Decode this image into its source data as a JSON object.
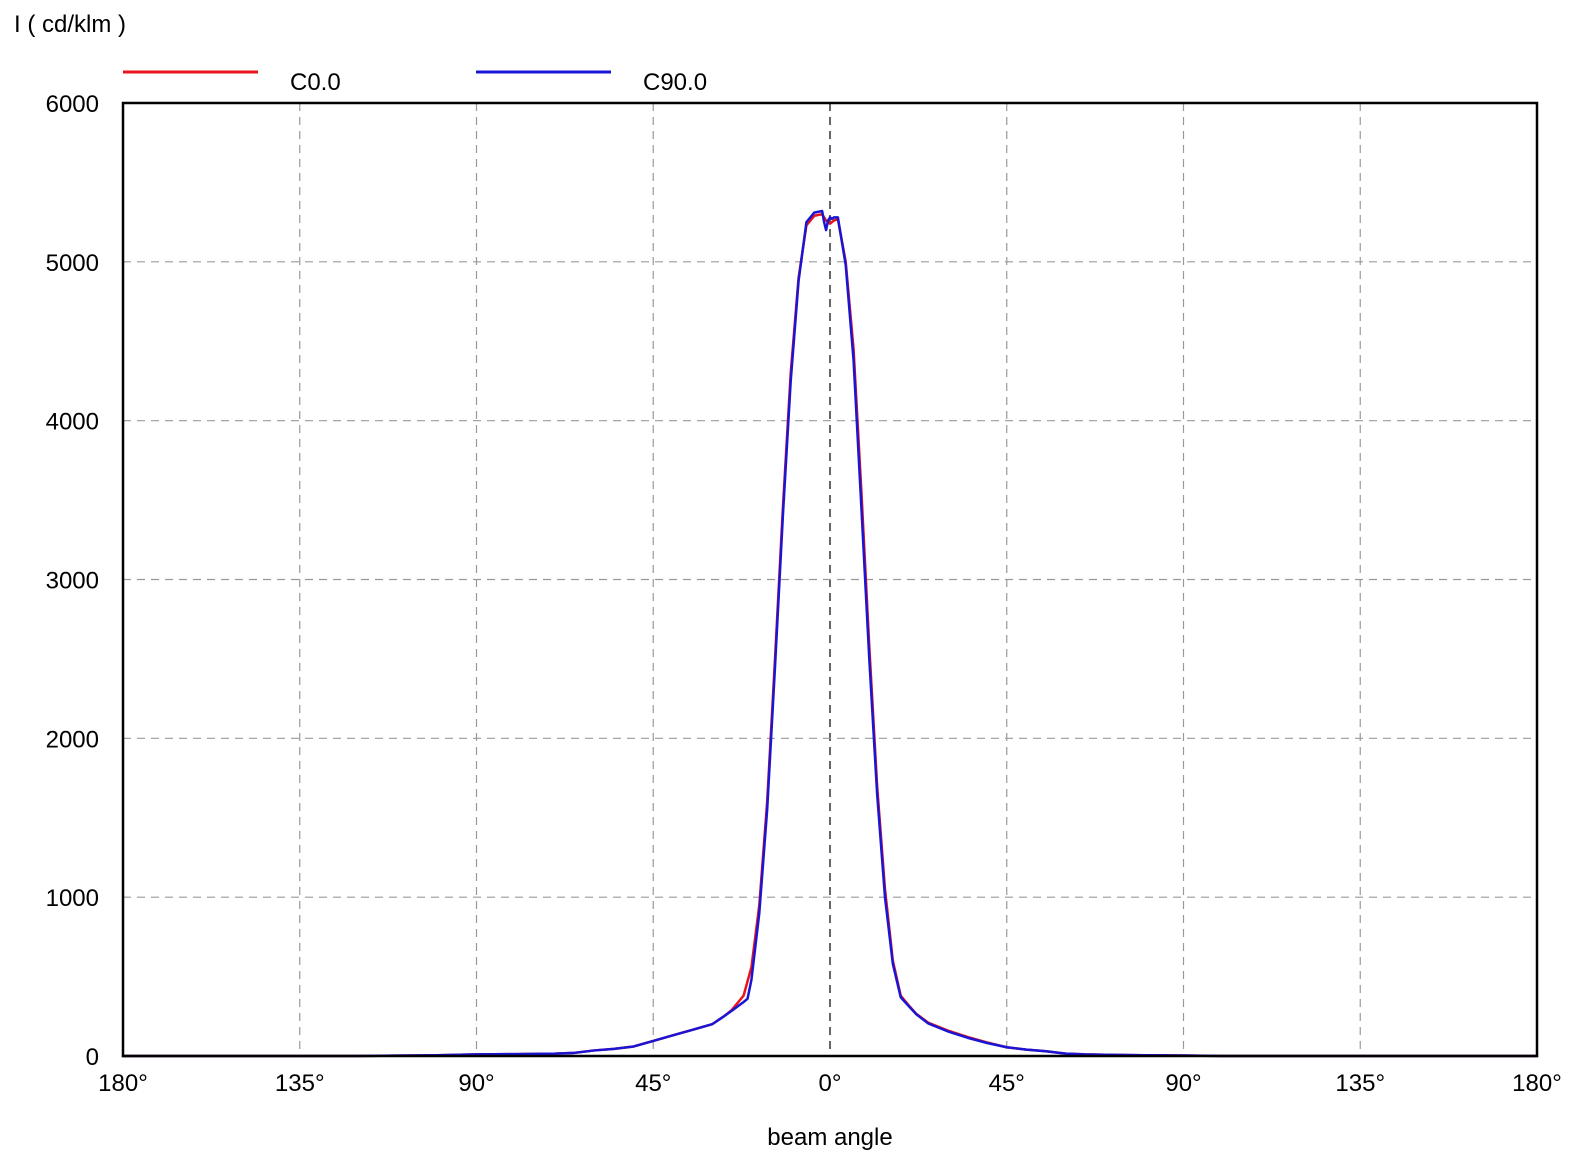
{
  "chart_data": {
    "type": "line",
    "ylabel": "I ( cd/klm )",
    "xlabel": "beam angle",
    "xlim": [
      -180,
      180
    ],
    "ylim": [
      0,
      6000
    ],
    "grid": true,
    "legend_position": "top",
    "x_tick_values": [
      -180,
      -135,
      -90,
      -45,
      0,
      45,
      90,
      135,
      180
    ],
    "x_tick_labels": [
      "180°",
      "135°",
      "90°",
      "45°",
      "0°",
      "45°",
      "90°",
      "135°",
      "180°"
    ],
    "y_tick_values": [
      0,
      1000,
      2000,
      3000,
      4000,
      5000,
      6000
    ],
    "y_tick_labels": [
      "0",
      "1000",
      "2000",
      "3000",
      "4000",
      "5000",
      "6000"
    ],
    "series": [
      {
        "name": "C0.0",
        "color": "#e8141a",
        "x": [
          -180,
          -120,
          -100,
          -90,
          -80,
          -70,
          -65,
          -60,
          -55,
          -50,
          -45,
          -40,
          -35,
          -30,
          -27,
          -25,
          -22,
          -20,
          -18,
          -16,
          -14,
          -12,
          -10,
          -8,
          -6,
          -4,
          -2,
          -1,
          0,
          1,
          2,
          4,
          6,
          8,
          10,
          12,
          14,
          16,
          18,
          20,
          22,
          25,
          30,
          35,
          40,
          45,
          50,
          55,
          60,
          65,
          70,
          80,
          90,
          100,
          120,
          180
        ],
        "y": [
          0,
          0,
          5,
          10,
          12,
          15,
          20,
          35,
          45,
          60,
          95,
          130,
          165,
          200,
          250,
          290,
          380,
          560,
          950,
          1600,
          2500,
          3450,
          4300,
          4900,
          5230,
          5290,
          5300,
          5260,
          5240,
          5260,
          5270,
          5000,
          4450,
          3550,
          2580,
          1700,
          1050,
          600,
          380,
          320,
          265,
          210,
          160,
          120,
          85,
          55,
          40,
          30,
          15,
          10,
          8,
          5,
          3,
          0,
          0,
          0
        ]
      },
      {
        "name": "C90.0",
        "color": "#1a14d4",
        "x": [
          -180,
          -120,
          -100,
          -90,
          -80,
          -70,
          -65,
          -60,
          -55,
          -50,
          -45,
          -40,
          -35,
          -30,
          -27,
          -25,
          -22,
          -21,
          -20,
          -18,
          -16,
          -14,
          -12,
          -10,
          -8,
          -6,
          -4,
          -2,
          -1.5,
          -1,
          -0.5,
          0,
          0.5,
          1,
          2,
          4,
          6,
          8,
          10,
          12,
          14,
          16,
          18,
          20,
          22,
          25,
          30,
          35,
          40,
          45,
          50,
          55,
          60,
          65,
          70,
          80,
          90,
          100,
          120,
          180
        ],
        "y": [
          0,
          0,
          5,
          10,
          12,
          15,
          20,
          35,
          45,
          60,
          95,
          130,
          165,
          200,
          250,
          285,
          340,
          360,
          480,
          900,
          1550,
          2450,
          3400,
          4250,
          4880,
          5250,
          5310,
          5320,
          5250,
          5200,
          5260,
          5280,
          5270,
          5280,
          5280,
          4980,
          4380,
          3450,
          2500,
          1650,
          1000,
          580,
          370,
          315,
          262,
          205,
          155,
          115,
          82,
          55,
          40,
          30,
          15,
          10,
          8,
          5,
          3,
          0,
          0,
          0
        ]
      }
    ]
  }
}
